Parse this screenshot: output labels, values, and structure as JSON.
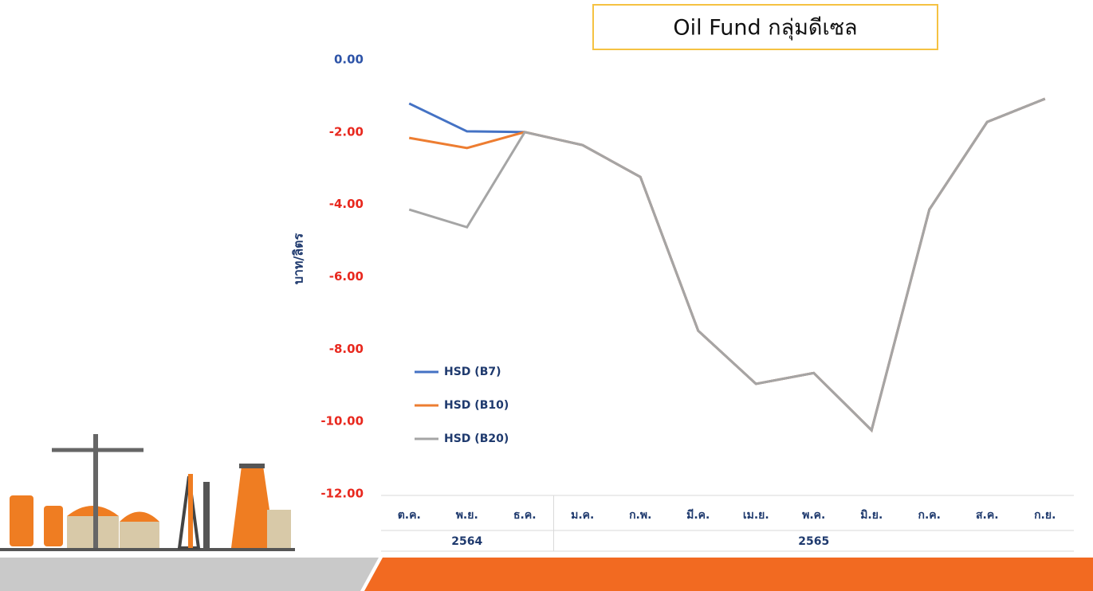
{
  "chart_data": {
    "type": "line",
    "title": "Oil Fund  กลุ่มดีเซล",
    "y_label": "บาท/ลิตร",
    "categories": [
      "ต.ค.",
      "พ.ย.",
      "ธ.ค.",
      "ม.ค.",
      "ก.พ.",
      "มี.ค.",
      "เม.ย.",
      "พ.ค.",
      "มิ.ย.",
      "ก.ค.",
      "ส.ค.",
      "ก.ย."
    ],
    "x_groups": [
      {
        "label": "2564",
        "count": 3
      },
      {
        "label": "2565",
        "count": 9
      }
    ],
    "series": [
      {
        "name": "HSD (B7)",
        "color": "#4472c4",
        "values": [
          -1.21,
          -1.98,
          -2.0,
          -2.36,
          -3.24,
          -7.49,
          -8.96,
          -8.66,
          -10.24,
          -4.14,
          -1.72,
          -1.08
        ]
      },
      {
        "name": "HSD (B10)",
        "color": "#ed7d31",
        "values": [
          -2.16,
          -2.44,
          -2.0,
          -2.36,
          -3.24,
          -7.49,
          -8.96,
          -8.66,
          -10.24,
          -4.14,
          -1.72,
          -1.08
        ]
      },
      {
        "name": "HSD (B20)",
        "color": "#a5a5a5",
        "values": [
          -4.14,
          -4.63,
          -2.0,
          -2.36,
          -3.24,
          -7.49,
          -8.96,
          -8.66,
          -10.24,
          -4.14,
          -1.72,
          -1.08
        ]
      }
    ],
    "ylim": [
      -12,
      0
    ],
    "yticks": [
      {
        "value": 0,
        "label": "0.00"
      },
      {
        "value": -2,
        "label": "-2.00"
      },
      {
        "value": -4,
        "label": "-4.00"
      },
      {
        "value": -6,
        "label": "-6.00"
      },
      {
        "value": -8,
        "label": "-8.00"
      },
      {
        "value": -10,
        "label": "-10.00"
      },
      {
        "value": -12,
        "label": "-12.00"
      }
    ],
    "grid": false,
    "legend": "lower left"
  }
}
